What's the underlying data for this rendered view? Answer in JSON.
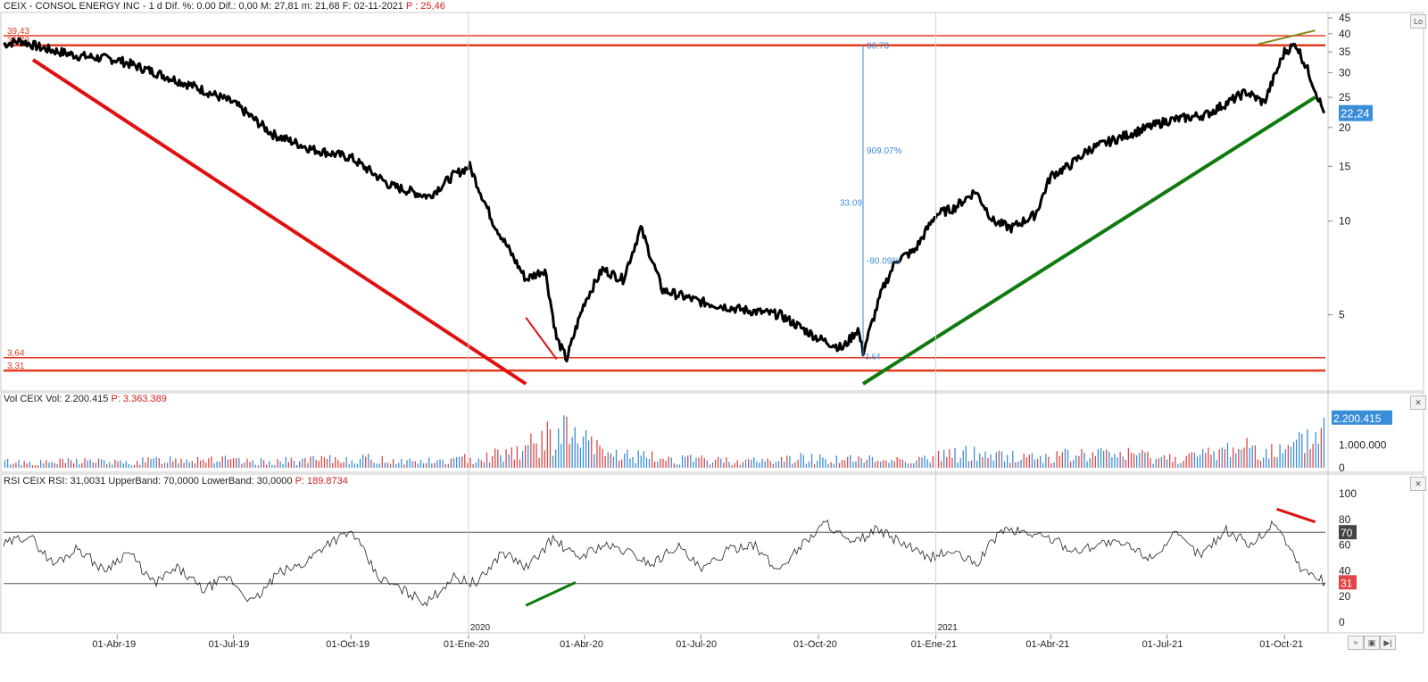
{
  "header": {
    "price_text": "CEIX - CONSOL ENERGY INC -  1 d Dif. %: 0.00  Dif.: 0,00  M: 27,81  m: 21,68  F: 02-11-2021 ",
    "price_p": "P : 25,46",
    "vol_text": "Vol CEIX Vol: 2.200.415 ",
    "vol_p": "P: 3.363.389",
    "rsi_text": "RSI CEIX RSI: 31,0031  UpperBand: 70,0000  LowerBand: 30,0000 ",
    "rsi_p": "P: 189.8734"
  },
  "chart_data": [
    {
      "type": "line",
      "name": "price",
      "title": "CEIX - CONSOL ENERGY INC",
      "scale": "log",
      "ylim": [
        3.0,
        45
      ],
      "y_ticks": [
        5,
        10,
        15,
        20,
        25,
        30,
        35,
        40,
        45
      ],
      "x": [
        "2019-01-02",
        "2019-01-15",
        "2019-02-01",
        "2019-03-01",
        "2019-04-01",
        "2019-05-01",
        "2019-06-01",
        "2019-07-01",
        "2019-08-01",
        "2019-09-01",
        "2019-10-01",
        "2019-11-01",
        "2019-12-01",
        "2019-12-20",
        "2020-01-02",
        "2020-01-20",
        "2020-02-15",
        "2020-03-01",
        "2020-03-10",
        "2020-03-18",
        "2020-03-25",
        "2020-04-01",
        "2020-04-15",
        "2020-05-01",
        "2020-05-15",
        "2020-06-01",
        "2020-07-01",
        "2020-08-01",
        "2020-09-01",
        "2020-10-01",
        "2020-10-20",
        "2020-11-01",
        "2020-11-05",
        "2020-11-20",
        "2020-12-01",
        "2020-12-15",
        "2021-01-01",
        "2021-01-15",
        "2021-02-01",
        "2021-02-15",
        "2021-03-01",
        "2021-03-20",
        "2021-04-01",
        "2021-04-15",
        "2021-05-01",
        "2021-06-01",
        "2021-07-01",
        "2021-08-01",
        "2021-09-01",
        "2021-09-15",
        "2021-10-01",
        "2021-10-10",
        "2021-10-20",
        "2021-11-01"
      ],
      "values": [
        37,
        38,
        36,
        34,
        33,
        30,
        27,
        24,
        19,
        17,
        16,
        13,
        12,
        14,
        15,
        10,
        6.5,
        7,
        4.2,
        3.6,
        4.5,
        5.5,
        7,
        6.5,
        9.5,
        6,
        5.5,
        5.2,
        5.0,
        4.2,
        3.9,
        4.5,
        3.8,
        6,
        7.5,
        8,
        10.5,
        11,
        12.5,
        10,
        9.5,
        10.5,
        14,
        15,
        17,
        19,
        21,
        22,
        26,
        24,
        35,
        37,
        30,
        22.24
      ],
      "last_value_label": "22,24",
      "levels": [
        {
          "label": "39,43",
          "value": 39.43
        },
        {
          "label": "36,73",
          "value": 36.73
        },
        {
          "label": "3,64",
          "value": 3.64
        },
        {
          "label": "3,31",
          "value": 3.31
        }
      ],
      "annotations": [
        "36.73",
        "909.07%",
        "33.09",
        "-90.09%",
        "3.64"
      ]
    },
    {
      "type": "bar",
      "name": "volume",
      "title": "Vol CEIX",
      "ylim": [
        0,
        2700000
      ],
      "y_ticks": [
        {
          "value": 0,
          "label": "0"
        },
        {
          "value": 1000000,
          "label": "1.000.000"
        }
      ],
      "last_value_label": "2.200.415",
      "values": [
        380000,
        310000,
        450000,
        290000,
        520000,
        600000,
        350000,
        410000,
        480000,
        550000,
        420000,
        390000,
        700000,
        1200000,
        2200000,
        900000,
        650000,
        500000,
        450000,
        420000,
        600000,
        520000,
        480000,
        560000,
        900000,
        700000,
        650000,
        800000,
        850000,
        600000,
        750000,
        1400000,
        900000,
        2200415
      ]
    },
    {
      "type": "line",
      "name": "rsi",
      "title": "RSI CEIX",
      "ylim": [
        0,
        100
      ],
      "y_ticks": [
        0,
        20,
        40,
        60,
        80,
        100
      ],
      "bands": [
        70,
        30
      ],
      "band_labels": [
        "70",
        "31"
      ],
      "values": [
        60,
        68,
        45,
        58,
        40,
        55,
        30,
        42,
        25,
        35,
        15,
        38,
        45,
        62,
        70,
        35,
        25,
        15,
        35,
        30,
        55,
        42,
        65,
        50,
        60,
        55,
        45,
        60,
        40,
        55,
        62,
        40,
        60,
        78,
        60,
        72,
        62,
        50,
        55,
        45,
        72,
        70,
        65,
        55,
        62,
        60,
        50,
        68,
        52,
        72,
        60,
        78,
        42,
        31
      ]
    }
  ],
  "time_axis": {
    "labels": [
      "01-Abr-19",
      "01-Jul-19",
      "01-Oct-19",
      "01-Ene-20",
      "01-Abr-20",
      "01-Jul-20",
      "01-Oct-20",
      "01-Ene-21",
      "01-Abr-21",
      "01-Jul-21",
      "01-Oct-21"
    ],
    "year_labels": [
      "2020",
      "2021"
    ]
  },
  "colors": {
    "price": "#000000",
    "support": "#e33b1f",
    "trend_down": "#e01010",
    "trend_up": "#0f7a0f",
    "up_accent": "#8a8a1a",
    "annotation": "#3a8ed8",
    "vol_up": "#3a8ed8",
    "vol_down": "#d94848",
    "rsi_line": "#222222",
    "rsi_low": "#d94848",
    "badge": "#3a8ed8",
    "badge_red": "#e04444",
    "badge_gray": "#444444"
  }
}
